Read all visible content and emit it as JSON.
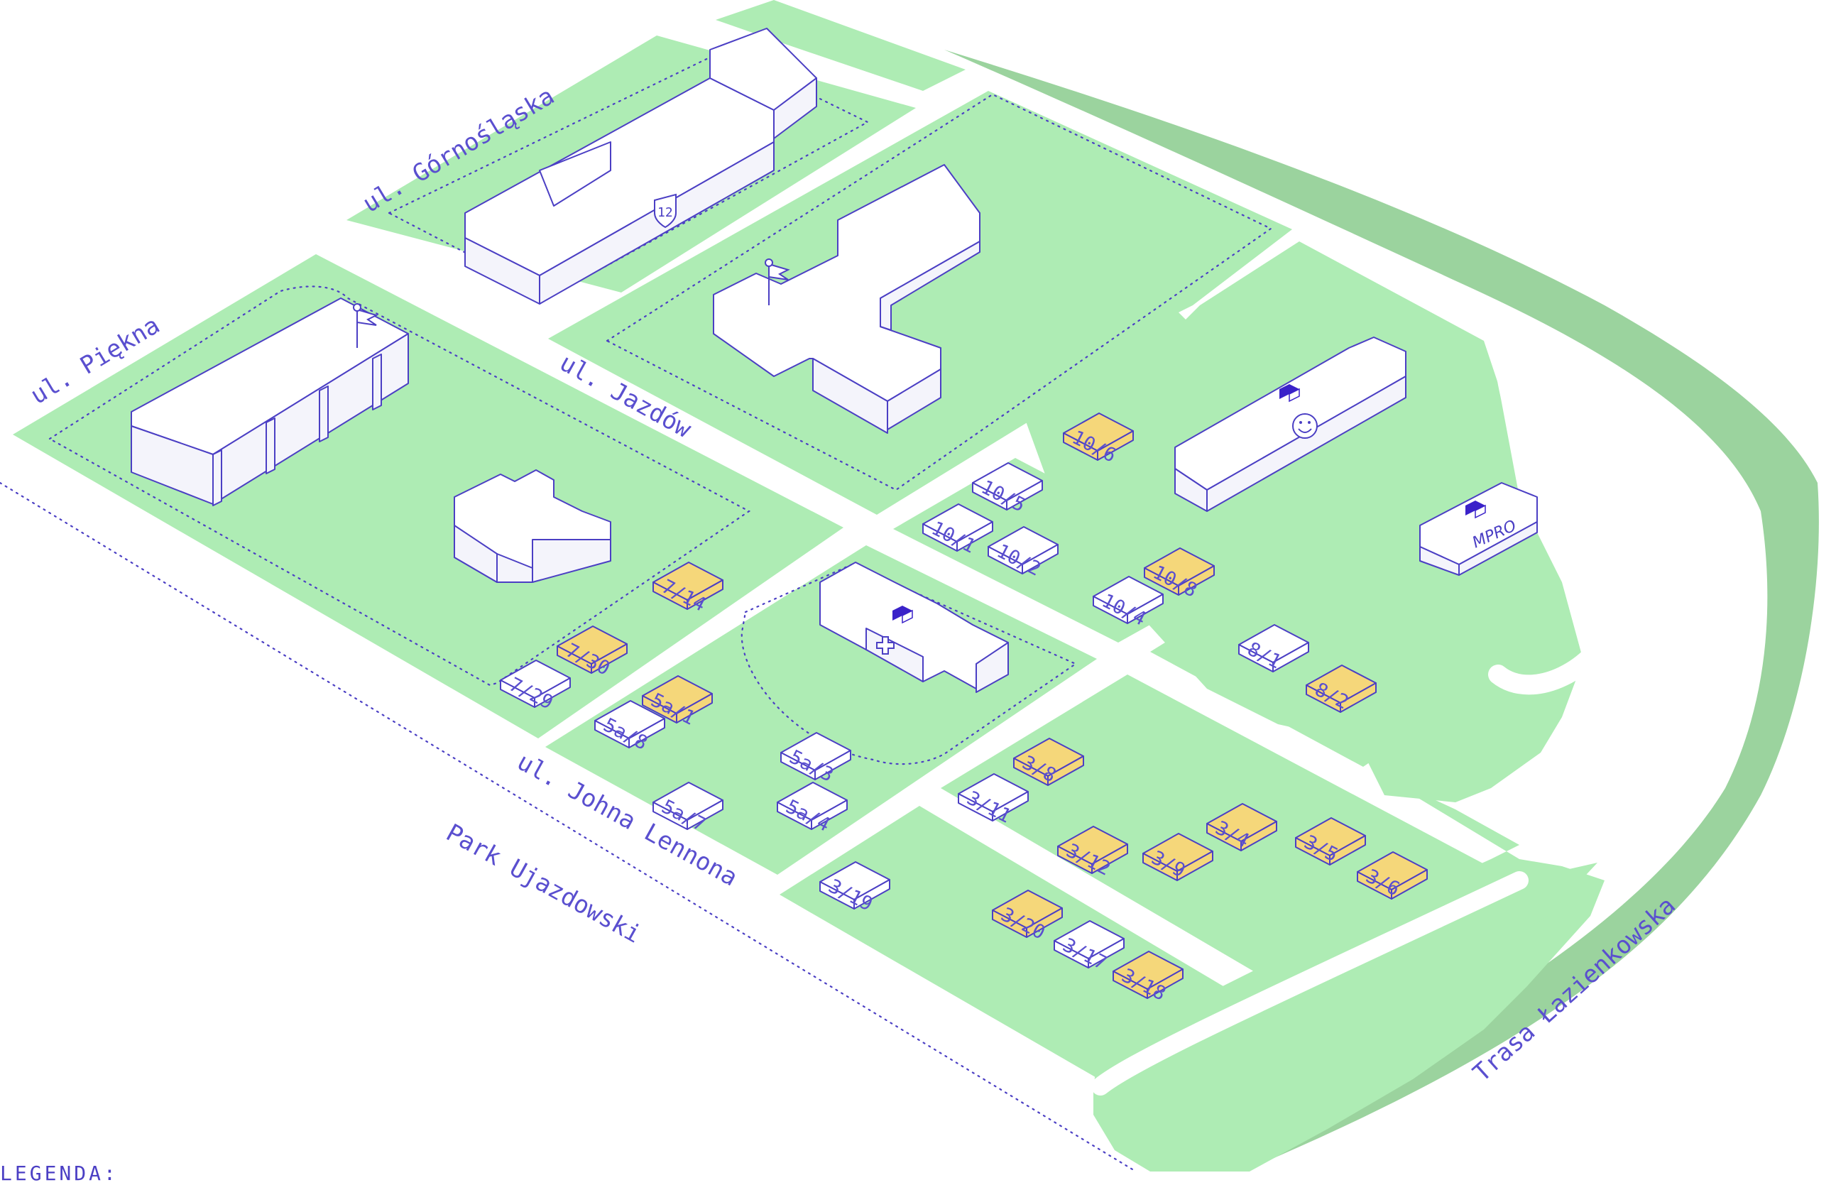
{
  "colors": {
    "park": "#aeecb4",
    "river": "#9bd39e",
    "outline": "#4b3fc4",
    "label": "#5a4fcf",
    "available_plot": "#f5d77a",
    "taken_plot": "#ffffff",
    "icon_fill": "#3a22c9"
  },
  "streets": {
    "gornoslaska": "ul. Górnośląska",
    "piekna": "ul. Piękna",
    "jazdow": "ul. Jazdów",
    "lennona": "ul. Johna Lennona",
    "park": "Park Ujazdowski",
    "trasa": "Trasa Łazienkowska"
  },
  "buildings": {
    "school_number": "12",
    "mpro_sign": "MPRO"
  },
  "plots": [
    {
      "id": "10/6",
      "status": "available"
    },
    {
      "id": "10/5",
      "status": "taken"
    },
    {
      "id": "10/1",
      "status": "taken"
    },
    {
      "id": "10/2",
      "status": "taken"
    },
    {
      "id": "10/8",
      "status": "available"
    },
    {
      "id": "10/4",
      "status": "taken"
    },
    {
      "id": "7/14",
      "status": "available"
    },
    {
      "id": "7/30",
      "status": "available"
    },
    {
      "id": "7/29",
      "status": "taken"
    },
    {
      "id": "5a/1",
      "status": "available"
    },
    {
      "id": "5a/8",
      "status": "taken"
    },
    {
      "id": "5a/3",
      "status": "taken"
    },
    {
      "id": "5a/7",
      "status": "taken"
    },
    {
      "id": "5a/4",
      "status": "taken"
    },
    {
      "id": "8/1",
      "status": "taken"
    },
    {
      "id": "8/2",
      "status": "available"
    },
    {
      "id": "3/8",
      "status": "available"
    },
    {
      "id": "3/11",
      "status": "taken"
    },
    {
      "id": "3/4",
      "status": "available"
    },
    {
      "id": "3/12",
      "status": "available"
    },
    {
      "id": "3/9",
      "status": "available"
    },
    {
      "id": "3/5",
      "status": "available"
    },
    {
      "id": "3/6",
      "status": "available"
    },
    {
      "id": "3/19",
      "status": "taken"
    },
    {
      "id": "3/20",
      "status": "available"
    },
    {
      "id": "3/17",
      "status": "taken"
    },
    {
      "id": "3/18",
      "status": "available"
    }
  ],
  "legend": {
    "title": "LEGENDA:"
  }
}
